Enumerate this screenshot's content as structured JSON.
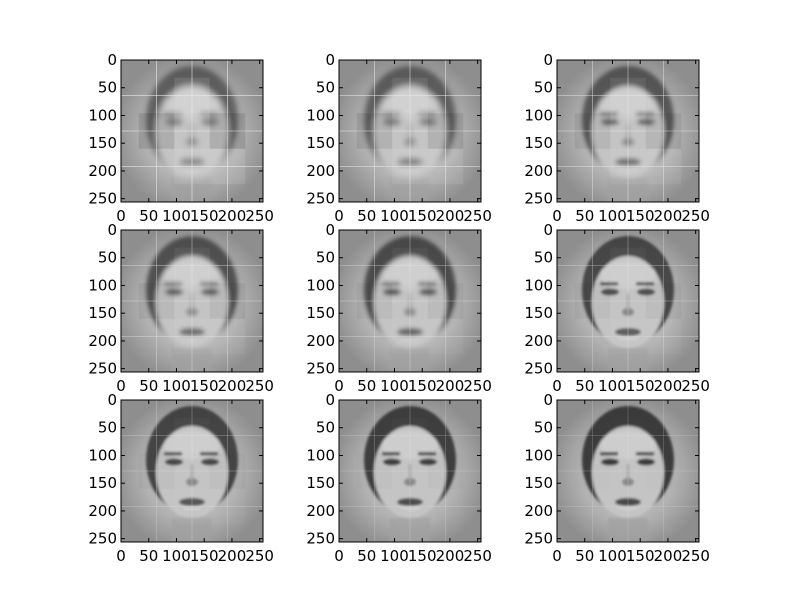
{
  "chart_data": {
    "type": "image-grid",
    "rows": 3,
    "cols": 3,
    "title": "",
    "xlabel": "",
    "ylabel": "",
    "xlim": [
      0,
      256
    ],
    "ylim": [
      256,
      0
    ],
    "x_ticks": [
      "0",
      "50",
      "100",
      "150",
      "200",
      "250"
    ],
    "y_ticks": [
      "0",
      "50",
      "100",
      "150",
      "200",
      "250"
    ],
    "colormap": "gray",
    "panels": [
      {
        "blockiness": 0.9,
        "sharpness": 0.15
      },
      {
        "blockiness": 0.75,
        "sharpness": 0.25
      },
      {
        "blockiness": 0.6,
        "sharpness": 0.35
      },
      {
        "blockiness": 0.45,
        "sharpness": 0.45
      },
      {
        "blockiness": 0.35,
        "sharpness": 0.55
      },
      {
        "blockiness": 0.3,
        "sharpness": 0.6
      },
      {
        "blockiness": 0.2,
        "sharpness": 0.7
      },
      {
        "blockiness": 0.12,
        "sharpness": 0.8
      },
      {
        "blockiness": 0.08,
        "sharpness": 0.85
      }
    ]
  }
}
